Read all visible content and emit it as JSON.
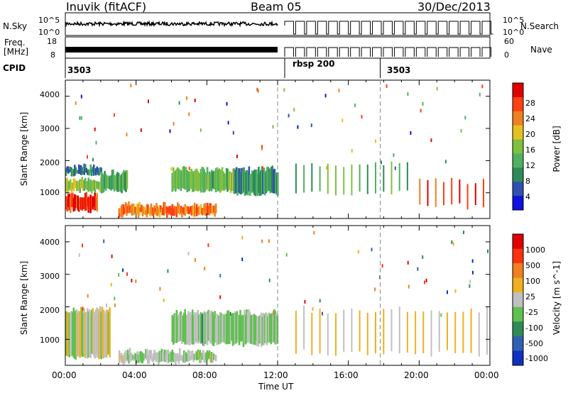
{
  "header": {
    "station": "Inuvik (fitACF)",
    "beam": "Beam 05",
    "date": "30/Dec/2013"
  },
  "summary_panels": {
    "noise": {
      "left_label": "N.Sky",
      "left_ticks": [
        "10^5",
        "10^0"
      ],
      "right_label": "N.Search",
      "right_ticks": [
        "10^5",
        "10^0"
      ]
    },
    "freq": {
      "left_label_line1": "Freq.",
      "left_label_line2": "[MHz]",
      "left_ticks": [
        "18",
        "8"
      ],
      "right_label": "Nave",
      "right_ticks": [
        "60",
        "0"
      ]
    },
    "cpid": {
      "label": "CPID",
      "segments": [
        {
          "start_hour": 0,
          "name": "3503"
        },
        {
          "start_hour": 12.4,
          "name": "rbsp 200"
        },
        {
          "start_hour": 17.8,
          "name": "3503"
        }
      ]
    }
  },
  "x_axis": {
    "label": "Time UT",
    "ticks": [
      "00:00",
      "04:00",
      "08:00",
      "12:00",
      "16:00",
      "20:00",
      "00:00"
    ]
  },
  "chart_data": [
    {
      "type": "heatmap",
      "name_internal": "power",
      "xlabel": "Time UT",
      "ylabel": "Slant Range [km]",
      "xlim_hours": [
        0,
        24
      ],
      "ylim_km": [
        200,
        4500
      ],
      "y_ticks": [
        "4000",
        "3000",
        "2000",
        "1000"
      ],
      "colorbar": {
        "label": "Power [dB]",
        "ticks": [
          "28",
          "24",
          "20",
          "16",
          "12",
          "8",
          "4"
        ],
        "colors": [
          "#1010e0",
          "#3050b0",
          "#2e8b57",
          "#50b060",
          "#80c040",
          "#e6c020",
          "#f08020",
          "#ff4010",
          "#e00000"
        ]
      },
      "echo_regions": [
        {
          "t_start": 0.0,
          "t_end": 1.8,
          "r_min": 400,
          "r_max": 1000,
          "power_db": 28
        },
        {
          "t_start": 0.0,
          "t_end": 2.2,
          "r_min": 1000,
          "r_max": 1500,
          "power_db": 16
        },
        {
          "t_start": 0.0,
          "t_end": 2.0,
          "r_min": 1500,
          "r_max": 1900,
          "power_db": 8
        },
        {
          "t_start": 2.0,
          "t_end": 3.5,
          "r_min": 1000,
          "r_max": 1700,
          "power_db": 12
        },
        {
          "t_start": 3.0,
          "t_end": 8.5,
          "r_min": 250,
          "r_max": 700,
          "power_db": 24
        },
        {
          "t_start": 6.0,
          "t_end": 9.5,
          "r_min": 1000,
          "r_max": 1800,
          "power_db": 14
        },
        {
          "t_start": 9.5,
          "t_end": 12.0,
          "r_min": 900,
          "r_max": 1800,
          "power_db": 10
        },
        {
          "t_start": 13.0,
          "t_end": 19.5,
          "r_min": 900,
          "r_max": 2000,
          "power_db": 12
        },
        {
          "t_start": 20.0,
          "t_end": 24.0,
          "r_min": 500,
          "r_max": 1500,
          "power_db": 26
        }
      ]
    },
    {
      "type": "heatmap",
      "name_internal": "velocity",
      "xlabel": "Time UT",
      "ylabel": "Slant Range [km]",
      "xlim_hours": [
        0,
        24
      ],
      "ylim_km": [
        200,
        4500
      ],
      "y_ticks": [
        "4000",
        "3000",
        "2000",
        "1000"
      ],
      "colorbar": {
        "label": "Velocity [m s^-1]",
        "ticks": [
          "1000",
          "500",
          "100",
          "25",
          "-25",
          "-100",
          "-500",
          "-1000"
        ],
        "colors": [
          "#1030c0",
          "#3060b0",
          "#2e8b57",
          "#60c050",
          "#c0c0c0",
          "#f0b020",
          "#f08020",
          "#ff3010",
          "#e00000"
        ]
      },
      "echo_regions": [
        {
          "t_start": 0.0,
          "t_end": 2.5,
          "r_min": 400,
          "r_max": 2000,
          "velocity": 0
        },
        {
          "t_start": 3.0,
          "t_end": 8.5,
          "r_min": 250,
          "r_max": 700,
          "velocity": 50
        },
        {
          "t_start": 6.0,
          "t_end": 12.0,
          "r_min": 800,
          "r_max": 1900,
          "velocity": 150
        },
        {
          "t_start": 13.0,
          "t_end": 24.0,
          "r_min": 500,
          "r_max": 2000,
          "velocity": -150
        }
      ]
    }
  ]
}
